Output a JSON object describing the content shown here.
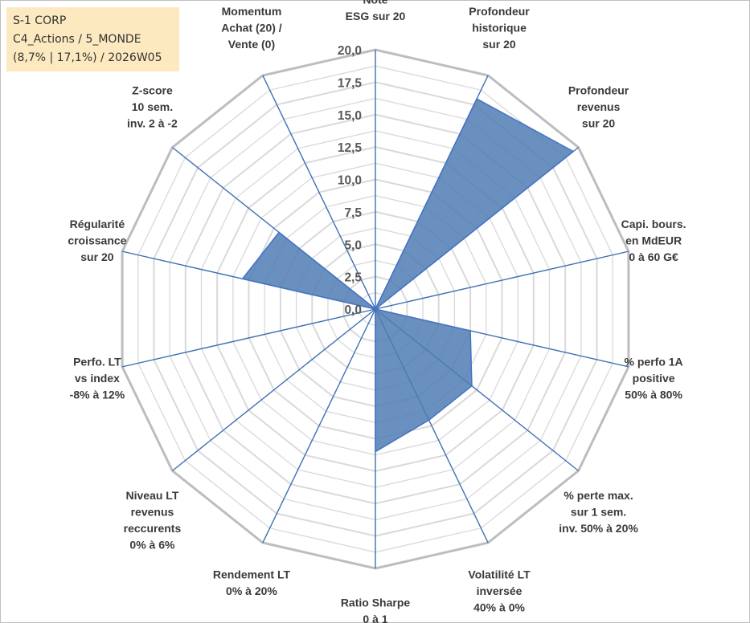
{
  "info_box": {
    "line1": "S-1 CORP",
    "line2": "C4_Actions / 5_MONDE",
    "line3": "(8,7% | 17,1%) / 2026W05"
  },
  "chart_data": {
    "type": "radar",
    "r_range": [
      0,
      20
    ],
    "tick_labels": [
      "0,0",
      "2,5",
      "5,0",
      "7,5",
      "10,0",
      "12,5",
      "15,0",
      "17,5",
      "20,0"
    ],
    "grid": true,
    "series": [
      {
        "color": "#4f7db3",
        "values": [
          0,
          18,
          19.5,
          0,
          7.5,
          9.5,
          9.5,
          11,
          0,
          0,
          0,
          10.5,
          9.5,
          0,
          0
        ]
      }
    ],
    "axes": [
      [
        "Note",
        "ESG sur 20"
      ],
      [
        "Profondeur",
        "historique",
        "sur 20"
      ],
      [
        "Profondeur",
        "revenus",
        "sur 20"
      ],
      [
        "Capi. bours.",
        "en MdEUR",
        "0 à 60 G€"
      ],
      [
        "% perfo 1A",
        "positive",
        "50% à 80%"
      ],
      [
        "% perte max.",
        "sur 1 sem.",
        "inv. 50% à 20%"
      ],
      [
        "Volatilité LT",
        "inversée",
        "40% à 0%"
      ],
      [
        "Ratio Sharpe",
        "0 à 1"
      ],
      [
        "Rendement LT",
        "0% à 20%"
      ],
      [
        "Niveau LT",
        "revenus",
        "reccurents",
        "0% à 6%"
      ],
      [
        "Perfo. LT",
        "vs index",
        "-8% à 12%"
      ],
      [
        "Régularité",
        "croissance",
        "sur 20"
      ],
      [
        "Z-score",
        "10 sem.",
        "inv. 2 à -2"
      ],
      [
        "Momentum",
        "Achat (20) /",
        "Vente (0)"
      ]
    ]
  }
}
